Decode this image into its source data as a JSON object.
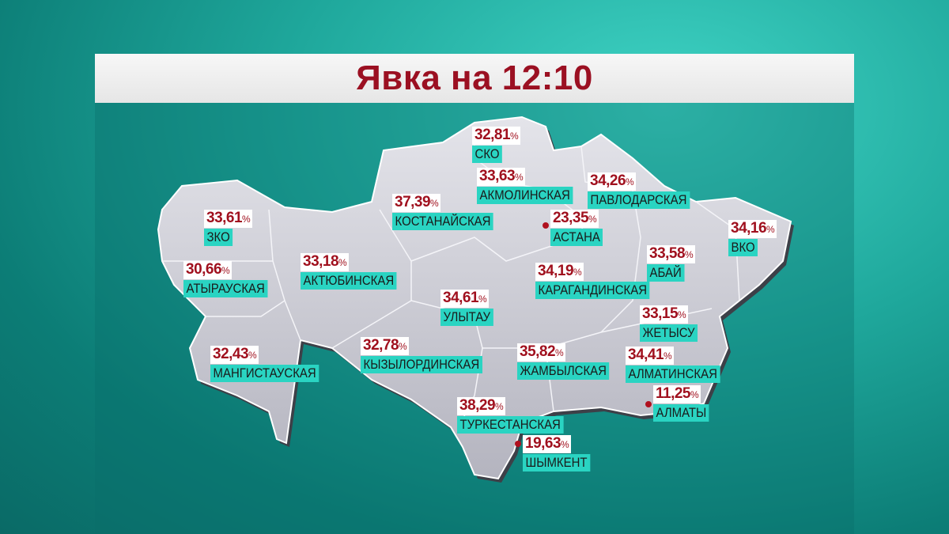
{
  "title": "Явка на 12:10",
  "percent_sign": "%",
  "colors": {
    "title": "#9b1022",
    "value": "#a0101e",
    "label_bg": "#2ad4c2",
    "background": "#1fa89c"
  },
  "regions": [
    {
      "name": "СКО",
      "value": "32,81"
    },
    {
      "name": "АКМОЛИНСКАЯ",
      "value": "33,63"
    },
    {
      "name": "ПАВЛОДАРСКАЯ",
      "value": "34,26"
    },
    {
      "name": "КОСТАНАЙСКАЯ",
      "value": "37,39"
    },
    {
      "name": "АСТАНА",
      "value": "23,35",
      "city": true
    },
    {
      "name": "ЗКО",
      "value": "33,61"
    },
    {
      "name": "ВКО",
      "value": "34,16"
    },
    {
      "name": "АБАЙ",
      "value": "33,58"
    },
    {
      "name": "АКТЮБИНСКАЯ",
      "value": "33,18"
    },
    {
      "name": "АТЫРАУСКАЯ",
      "value": "30,66"
    },
    {
      "name": "КАРАГАНДИНСКАЯ",
      "value": "34,19"
    },
    {
      "name": "УЛЫТАУ",
      "value": "34,61"
    },
    {
      "name": "ЖЕТЫСУ",
      "value": "33,15"
    },
    {
      "name": "МАНГИСТАУСКАЯ",
      "value": "32,43"
    },
    {
      "name": "КЫЗЫЛОРДИНСКАЯ",
      "value": "32,78"
    },
    {
      "name": "ЖАМБЫЛСКАЯ",
      "value": "35,82"
    },
    {
      "name": "АЛМАТИНСКАЯ",
      "value": "34,41"
    },
    {
      "name": "АЛМАТЫ",
      "value": "11,25",
      "city": true
    },
    {
      "name": "ТУРКЕСТАНСКАЯ",
      "value": "38,29"
    },
    {
      "name": "ШЫМКЕНТ",
      "value": "19,63",
      "city": true
    }
  ]
}
